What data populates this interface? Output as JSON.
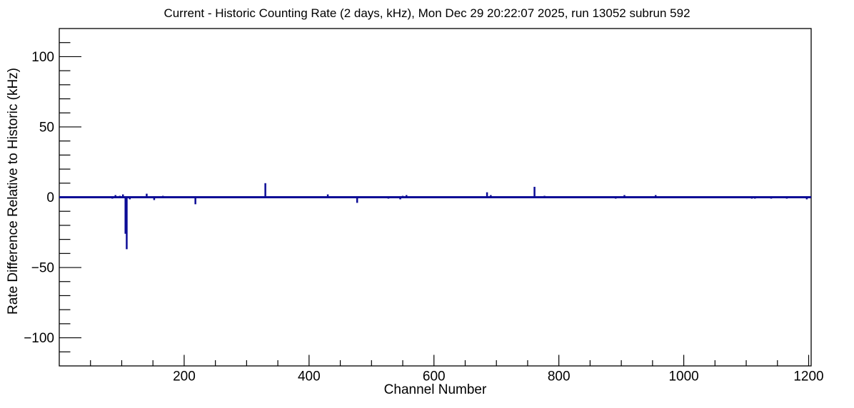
{
  "chart_data": {
    "type": "bar",
    "title": "Current - Historic Counting Rate (2 days, kHz), Mon Dec 29 20:22:07 2025, run 13052 subrun 592",
    "xlabel": "Channel Number",
    "ylabel": "Rate Difference Relative to Historic (kHz)",
    "xlim": [
      0,
      1204
    ],
    "ylim": [
      -120,
      120
    ],
    "x_major_ticks": [
      200,
      400,
      600,
      800,
      1000,
      1200
    ],
    "x_minor_step": 50,
    "y_major_ticks": [
      -100,
      -50,
      0,
      50,
      100
    ],
    "y_minor_step": 10,
    "grid": false,
    "legend": "none",
    "baseline": 0,
    "line_color": "#0c0c96",
    "frame_color": "#000000",
    "background_color": "#ffffff",
    "spikes": [
      {
        "channel": 85,
        "value": -1
      },
      {
        "channel": 90,
        "value": 1.5
      },
      {
        "channel": 97,
        "value": 1
      },
      {
        "channel": 102,
        "value": 2
      },
      {
        "channel": 106,
        "value": -26
      },
      {
        "channel": 108,
        "value": -37
      },
      {
        "channel": 113,
        "value": -1.5
      },
      {
        "channel": 140,
        "value": 2.5
      },
      {
        "channel": 152,
        "value": -2
      },
      {
        "channel": 166,
        "value": 1
      },
      {
        "channel": 218,
        "value": -5
      },
      {
        "channel": 330,
        "value": 10
      },
      {
        "channel": 430,
        "value": 2
      },
      {
        "channel": 477,
        "value": -4
      },
      {
        "channel": 527,
        "value": -1
      },
      {
        "channel": 546,
        "value": -1.5
      },
      {
        "channel": 550,
        "value": 1
      },
      {
        "channel": 556,
        "value": 1.5
      },
      {
        "channel": 685,
        "value": 3.5
      },
      {
        "channel": 691,
        "value": 1.5
      },
      {
        "channel": 761,
        "value": 7.4
      },
      {
        "channel": 777,
        "value": 1
      },
      {
        "channel": 891,
        "value": -1
      },
      {
        "channel": 905,
        "value": 1.5
      },
      {
        "channel": 955,
        "value": 1.5
      },
      {
        "channel": 1109,
        "value": -1
      },
      {
        "channel": 1114,
        "value": -1
      },
      {
        "channel": 1140,
        "value": -1
      },
      {
        "channel": 1165,
        "value": -1
      },
      {
        "channel": 1197,
        "value": -1.5
      }
    ]
  }
}
